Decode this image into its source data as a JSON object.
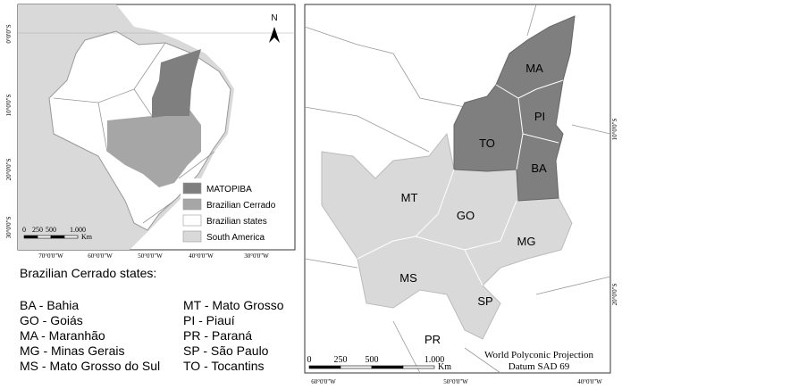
{
  "left_map": {
    "north": "N",
    "lat_labels": [
      "0°0'0\"S",
      "10°0'0\"S",
      "20°0'0\"S",
      "30°0'0\"S"
    ],
    "lon_labels": [
      "70°0'0\"W",
      "60°0'0\"W",
      "50°0'0\"W",
      "40°0'0\"W",
      "30°0'0\"W"
    ],
    "scale": {
      "labels": [
        "0",
        "250",
        "500",
        "1.000"
      ],
      "unit": "Km"
    },
    "legend": [
      "MATOPIBA",
      "Brazilian Cerrado",
      "Brazilian states",
      "South America"
    ]
  },
  "states_list": {
    "title": "Brazilian Cerrado states:",
    "items": [
      "BA - Bahia",
      "GO - Goiás",
      "MA - Maranhão",
      "MG - Minas Gerais",
      "MS - Mato Grosso do Sul",
      "MT - Mato Grosso",
      "PI - Piauí",
      "PR - Paraná",
      "SP - São Paulo",
      "TO - Tocantins"
    ]
  },
  "right_map": {
    "region_labels": [
      "MA",
      "PI",
      "TO",
      "BA",
      "MT",
      "GO",
      "MG",
      "MS",
      "SP",
      "PR"
    ],
    "lat_labels": [
      "10°0'0\"S",
      "20°0'0\"S"
    ],
    "lon_labels": [
      "60°0'0\"W",
      "50°0'0\"W",
      "40°0'0\"W"
    ],
    "projection": "World Polyconic Projection",
    "datum": "Datum SAD 69",
    "scale": {
      "labels": [
        "0",
        "250",
        "500",
        "1.000"
      ],
      "unit": "Km"
    }
  }
}
